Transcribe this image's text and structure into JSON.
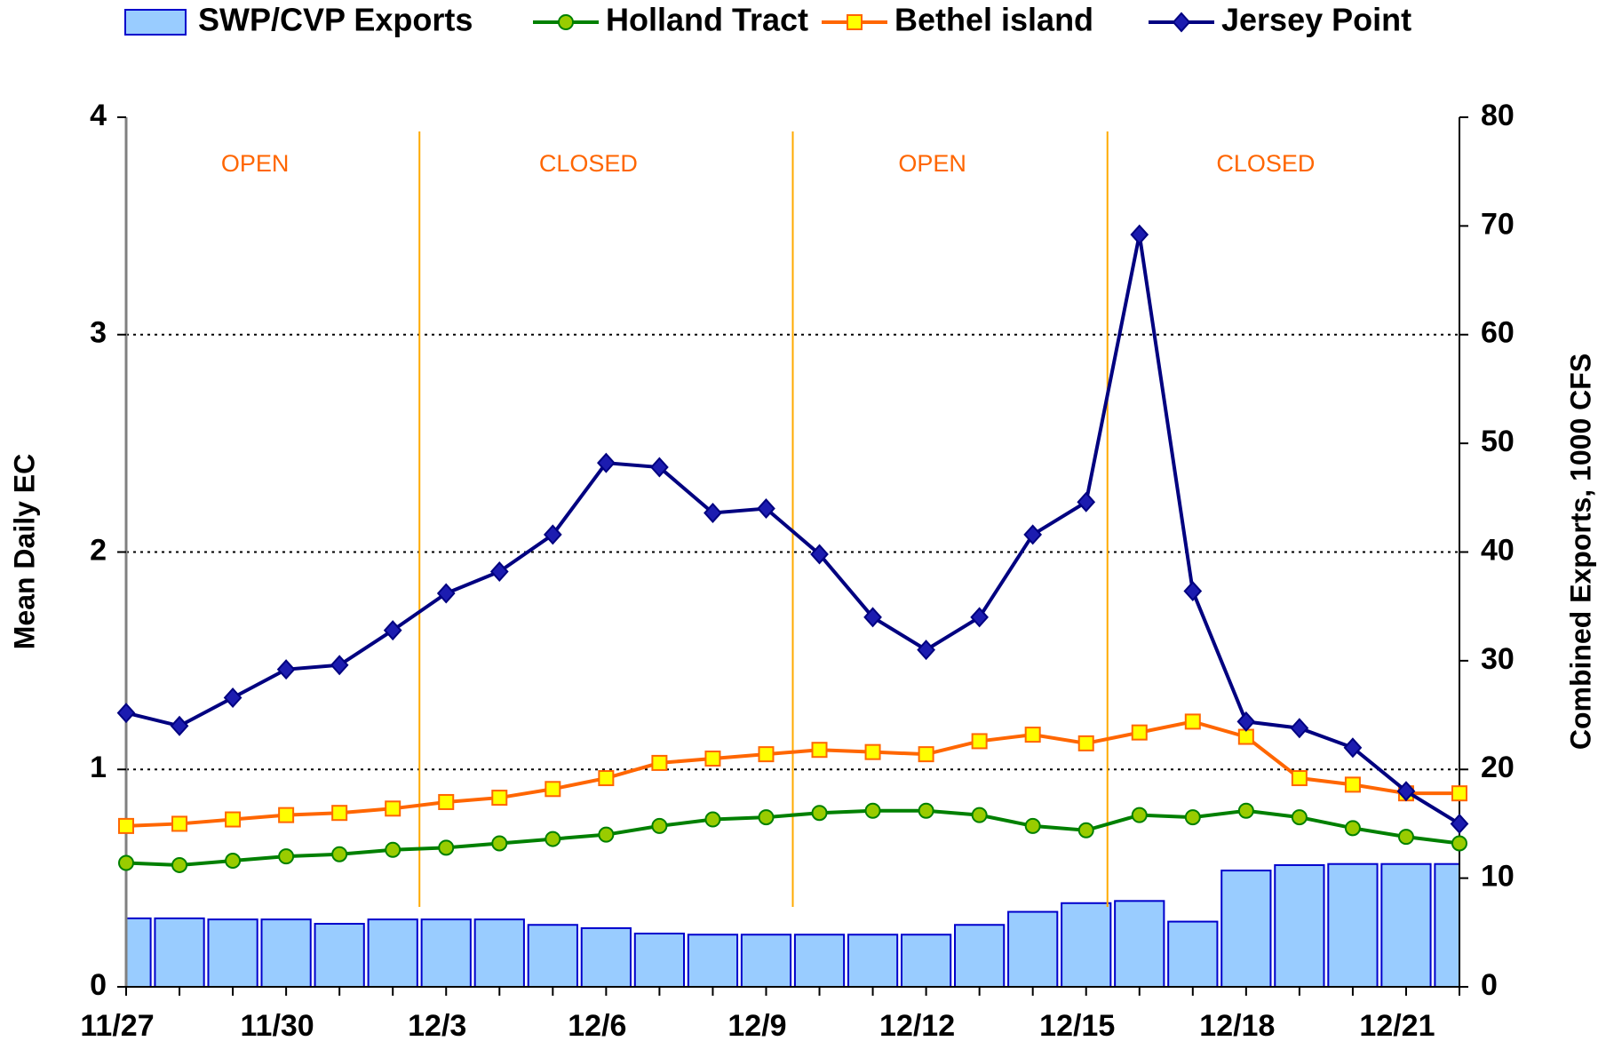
{
  "chart_data": {
    "type": "bar_line_combo",
    "categories": [
      "11/27",
      null,
      null,
      "11/30",
      null,
      null,
      "12/3",
      null,
      null,
      "12/6",
      null,
      null,
      "12/9",
      null,
      null,
      "12/12",
      null,
      null,
      "12/15",
      null,
      null,
      "12/18",
      null,
      null,
      "12/21",
      null
    ],
    "ylabel": "Mean Daily EC",
    "y2label": "Combined Exports, 1000 CFS",
    "ylim": [
      0,
      4
    ],
    "yticks": [
      0,
      1,
      2,
      3,
      4
    ],
    "y2lim": [
      0,
      80
    ],
    "y2ticks": [
      0,
      10,
      20,
      30,
      40,
      50,
      60,
      70,
      80
    ],
    "grid": true,
    "legend": "top",
    "series": [
      {
        "name": "SWP/CVP Exports",
        "type": "bar",
        "axis": "y2",
        "color": "#99ccff",
        "edge": "#0000cc",
        "values": [
          6.3,
          6.3,
          6.2,
          6.2,
          5.8,
          6.2,
          6.2,
          6.2,
          5.7,
          5.4,
          4.9,
          4.8,
          4.8,
          4.8,
          4.8,
          4.8,
          5.7,
          6.9,
          7.7,
          7.9,
          6.0,
          10.7,
          11.2,
          11.3,
          11.3,
          11.3
        ]
      },
      {
        "name": "Holland Tract",
        "type": "line",
        "marker": "circle",
        "color": "#008000",
        "marker_fill": "#99cc00",
        "values": [
          0.57,
          0.56,
          0.58,
          0.6,
          0.61,
          0.63,
          0.64,
          0.66,
          0.68,
          0.7,
          0.74,
          0.77,
          0.78,
          0.8,
          0.81,
          0.81,
          0.79,
          0.74,
          0.72,
          0.79,
          0.78,
          0.81,
          0.78,
          0.73,
          0.69,
          0.66
        ]
      },
      {
        "name": "Bethel island",
        "type": "line",
        "marker": "square",
        "color": "#ff6600",
        "marker_fill": "#ffff00",
        "values": [
          0.74,
          0.75,
          0.77,
          0.79,
          0.8,
          0.82,
          0.85,
          0.87,
          0.91,
          0.96,
          1.03,
          1.05,
          1.07,
          1.09,
          1.08,
          1.07,
          1.13,
          1.16,
          1.12,
          1.17,
          1.22,
          1.15,
          0.96,
          0.93,
          0.89,
          0.89
        ]
      },
      {
        "name": "Jersey Point",
        "type": "line",
        "marker": "diamond",
        "color": "#000080",
        "marker_fill": "#1c1cb0",
        "values": [
          1.26,
          1.2,
          1.33,
          1.46,
          1.48,
          1.64,
          1.81,
          1.91,
          2.08,
          2.41,
          2.39,
          2.18,
          2.2,
          1.99,
          1.7,
          1.55,
          1.7,
          2.08,
          2.23,
          3.46,
          1.82,
          1.22,
          1.19,
          1.1,
          0.9,
          0.75
        ]
      }
    ],
    "gate_changes": [
      5.5,
      12.5,
      18.4
    ],
    "gate_line_color": "#ffaa00",
    "annotations": [
      "OPEN",
      "CLOSED",
      "OPEN",
      "CLOSED"
    ]
  }
}
